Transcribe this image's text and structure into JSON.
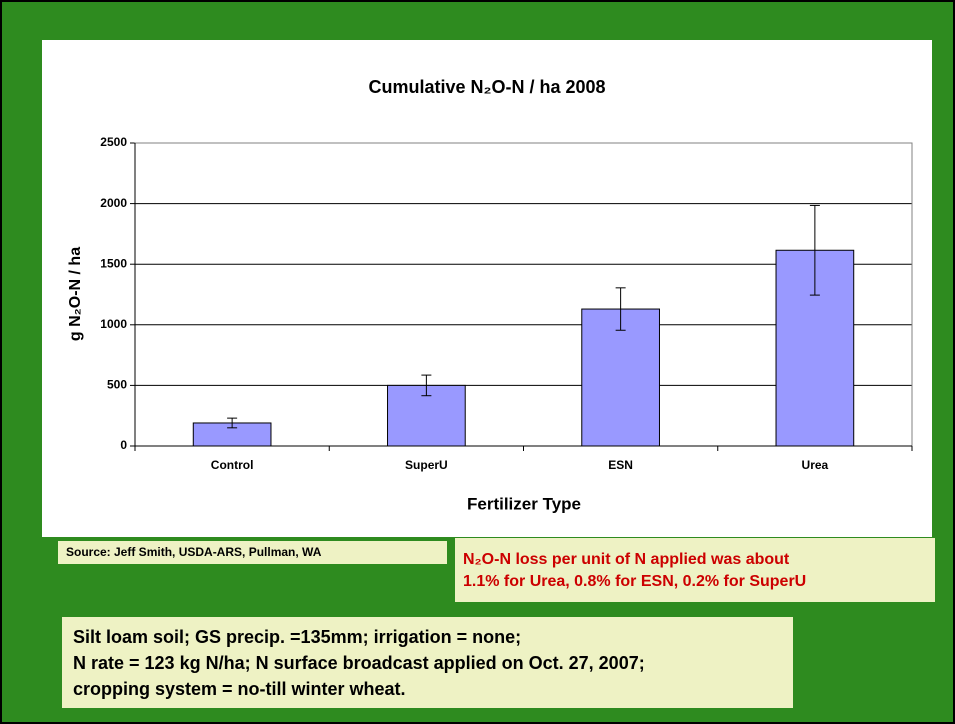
{
  "chart_data": {
    "type": "bar",
    "title": "Cumulative N₂O-N / ha 2008",
    "x_label": "Fertilizer Type",
    "y_label": "g N₂O-N / ha",
    "categories": [
      "Control",
      "SuperU",
      "ESN",
      "Urea"
    ],
    "values": [
      190,
      500,
      1130,
      1615
    ],
    "errors": [
      40,
      85,
      175,
      370
    ],
    "color": "#9999ff",
    "ylim": [
      0,
      2500
    ],
    "yticks": [
      0,
      500,
      1000,
      1500,
      2000,
      2500
    ],
    "grid": true
  },
  "source": "Source:  Jeff Smith, USDA-ARS, Pullman, WA",
  "note": [
    "N₂O-N loss per unit of N applied was about",
    "1.1% for Urea, 0.8% for ESN, 0.2% for SuperU"
  ],
  "footer": [
    "Silt loam soil; GS precip. =135mm; irrigation = none;",
    "N rate = 123 kg N/ha; N surface broadcast applied on Oct. 27, 2007;",
    "cropping system = no-till winter wheat."
  ]
}
